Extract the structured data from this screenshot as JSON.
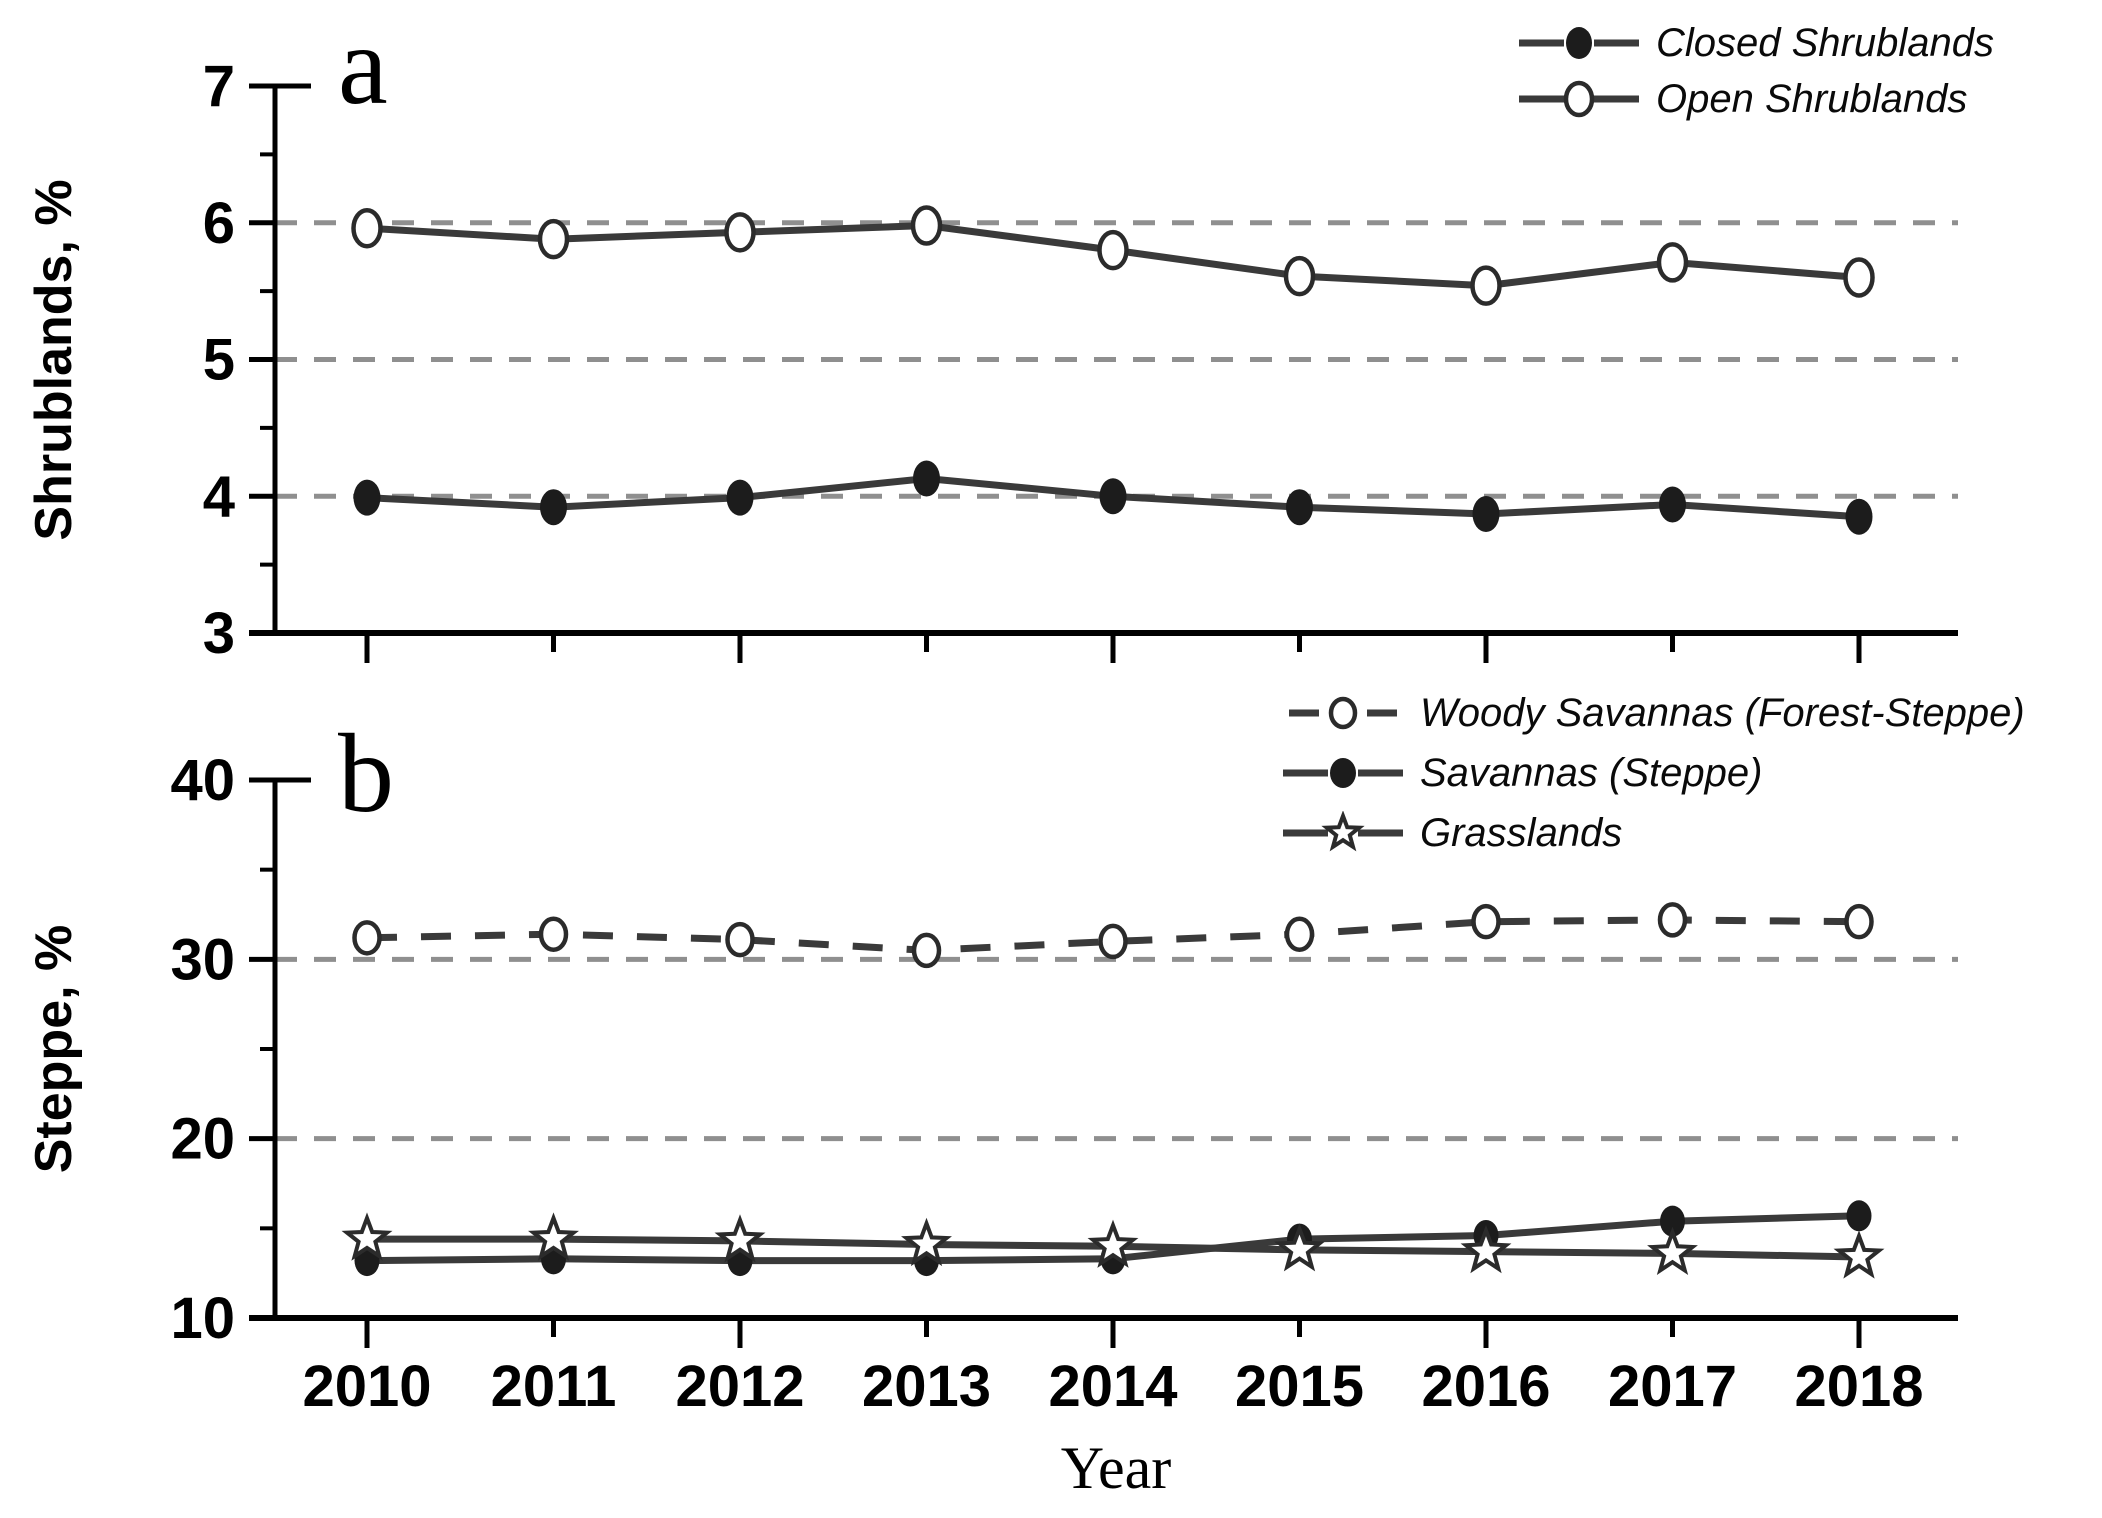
{
  "figure": {
    "xlabel": "Year",
    "background": "#ffffff",
    "colors": {
      "line": "#3a3a3a",
      "grid": "#8f8f8f",
      "axis": "#000000",
      "text": "#000000",
      "marker_fill": "#1c1c1c",
      "marker_open": "#ffffff"
    }
  },
  "chart_data": [
    {
      "type": "line",
      "panel_label": "a",
      "ylabel": "Shrublands, %",
      "ylim": [
        3,
        7
      ],
      "yticks": [
        3,
        4,
        5,
        6,
        7
      ],
      "minor_yticks": [
        3.5,
        4.5,
        5.5,
        6.5
      ],
      "gridlines": [
        4,
        5,
        6
      ],
      "x": [
        2010,
        2011,
        2012,
        2013,
        2014,
        2015,
        2016,
        2017,
        2018
      ],
      "show_x_labels": false,
      "grid": true,
      "legend_position": "top-right",
      "series": [
        {
          "name": "Closed Shrublands",
          "marker": "filled-circle",
          "line_style": "solid",
          "values": [
            3.99,
            3.92,
            3.99,
            4.13,
            4.0,
            3.92,
            3.87,
            3.94,
            3.85
          ]
        },
        {
          "name": "Open Shrublands",
          "marker": "open-circle",
          "line_style": "solid",
          "values": [
            5.96,
            5.88,
            5.93,
            5.98,
            5.8,
            5.61,
            5.54,
            5.71,
            5.6
          ]
        }
      ]
    },
    {
      "type": "line",
      "panel_label": "b",
      "ylabel": "Steppe, %",
      "xlabel": "Year",
      "ylim": [
        10,
        40
      ],
      "yticks": [
        10,
        20,
        30,
        40
      ],
      "minor_yticks": [
        15,
        25,
        35
      ],
      "gridlines": [
        20,
        30
      ],
      "x": [
        2010,
        2011,
        2012,
        2013,
        2014,
        2015,
        2016,
        2017,
        2018
      ],
      "show_x_labels": true,
      "grid": true,
      "legend_position": "top-right",
      "series": [
        {
          "name": "Woody Savannas (Forest-Steppe)",
          "marker": "open-circle",
          "line_style": "dashed",
          "values": [
            31.2,
            31.4,
            31.1,
            30.5,
            31.0,
            31.4,
            32.1,
            32.2,
            32.1
          ]
        },
        {
          "name": "Savannas (Steppe)",
          "marker": "filled-circle",
          "line_style": "solid",
          "values": [
            13.2,
            13.3,
            13.2,
            13.2,
            13.3,
            14.4,
            14.6,
            15.4,
            15.7
          ]
        },
        {
          "name": "Grasslands",
          "marker": "star",
          "line_style": "solid",
          "values": [
            14.4,
            14.4,
            14.3,
            14.1,
            14.0,
            13.8,
            13.7,
            13.6,
            13.4
          ]
        }
      ]
    }
  ]
}
